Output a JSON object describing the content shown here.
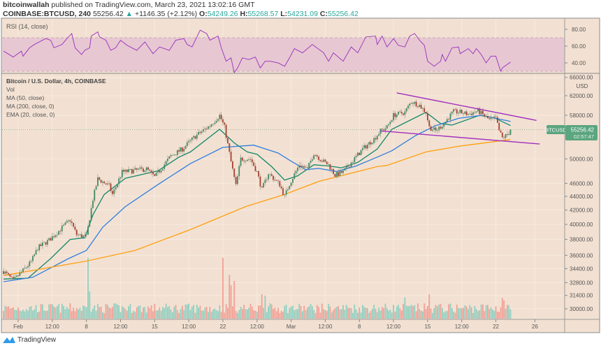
{
  "header": {
    "author": "bitcoinwallah",
    "published": " published on TradingView.com, March 23, 2021 13:02:16 GMT",
    "symbol": "COINBASE:BTCUSD, 240",
    "last": "55256.42",
    "change": "+1146.35 (+2.12%)",
    "o_label": "O:",
    "o": "54249.26",
    "h_label": "H:",
    "h": "55268.57",
    "l_label": "L:",
    "l": "54231.09",
    "c_label": "C:",
    "c": "55256.42"
  },
  "legend": {
    "title": "Bitcoin / U.S. Dollar, 4h, COINBASE",
    "vol": "Vol",
    "ma50": "MA (50, close)",
    "ma200": "MA (200, close, 0)",
    "ema20": "EMA (20, close, 0)",
    "rsi": "RSI (14, close)"
  },
  "price_label": {
    "symbol": "BTCUSD",
    "price": "55256.42",
    "countdown": "02:57:47"
  },
  "footer": {
    "brand": "TradingView"
  },
  "colors": {
    "background": "#f2e1d2",
    "up": "#3f8a63",
    "down": "#a8402f",
    "vol_up": "#8fcfc1",
    "vol_down": "#f2a096",
    "ema20": "#12876b",
    "ma50": "#2f7ee0",
    "ma200": "#ff9f10",
    "rsi": "#a03cc0",
    "rsi_band": "#e7c8d2",
    "trendline": "#a12fc0",
    "price_tag": "#5ba57f"
  },
  "chart_data": {
    "type": "candlestick",
    "title": "Bitcoin / U.S. Dollar, 4h, COINBASE",
    "y_scale": "log",
    "ylabel": "USD",
    "ylim": [
      28800,
      67000
    ],
    "grid": true,
    "y_ticks": [
      "66000.00",
      "62000.00",
      "58000.00",
      "50000.00",
      "46000.00",
      "44000.00",
      "42000.00",
      "40000.00",
      "38000.00",
      "36000.00",
      "34400.00",
      "32800.00",
      "31400.00",
      "30000.00"
    ],
    "x_ticks": [
      [
        "2021-02-01T00:00",
        "Feb"
      ],
      [
        "2021-02-04T12:00",
        "12:00"
      ],
      [
        "2021-02-08T00:00",
        "8"
      ],
      [
        "2021-02-11T12:00",
        "12:00"
      ],
      [
        "2021-02-15T00:00",
        "15"
      ],
      [
        "2021-02-18T12:00",
        "12:00"
      ],
      [
        "2021-02-22T00:00",
        "22"
      ],
      [
        "2021-02-25T12:00",
        "12:00"
      ],
      [
        "2021-03-01T00:00",
        "Mar"
      ],
      [
        "2021-03-04T12:00",
        "12:00"
      ],
      [
        "2021-03-08T00:00",
        "8"
      ],
      [
        "2021-03-11T12:00",
        "12:00"
      ],
      [
        "2021-03-15T00:00",
        "15"
      ],
      [
        "2021-03-18T12:00",
        "12:00"
      ],
      [
        "2021-03-22T00:00",
        "22"
      ],
      [
        "2021-03-26T00:00",
        "26"
      ]
    ],
    "close_approx": [
      [
        "2021-01-30T12:00",
        34100
      ],
      [
        "2021-01-31T12:00",
        33000
      ],
      [
        "2021-02-02T08:00",
        35200
      ],
      [
        "2021-02-03T00:00",
        36900
      ],
      [
        "2021-02-04T04:00",
        37900
      ],
      [
        "2021-02-06T08:00",
        40600
      ],
      [
        "2021-02-07T00:00",
        38600
      ],
      [
        "2021-02-08T00:00",
        38300
      ],
      [
        "2021-02-08T16:00",
        43600
      ],
      [
        "2021-02-09T04:00",
        46700
      ],
      [
        "2021-02-10T08:00",
        45600
      ],
      [
        "2021-02-10T16:00",
        44300
      ],
      [
        "2021-02-11T16:00",
        47800
      ],
      [
        "2021-02-14T04:00",
        48300
      ],
      [
        "2021-02-15T00:00",
        47000
      ],
      [
        "2021-02-16T16:00",
        50500
      ],
      [
        "2021-02-17T20:00",
        51700
      ],
      [
        "2021-02-19T04:00",
        54000
      ],
      [
        "2021-02-20T16:00",
        56000
      ],
      [
        "2021-02-21T16:00",
        58000
      ],
      [
        "2021-02-22T04:00",
        55700
      ],
      [
        "2021-02-22T20:00",
        49500
      ],
      [
        "2021-02-23T08:00",
        45600
      ],
      [
        "2021-02-23T20:00",
        50000
      ],
      [
        "2021-02-24T20:00",
        50000
      ],
      [
        "2021-02-25T12:00",
        47800
      ],
      [
        "2021-02-26T00:00",
        45000
      ],
      [
        "2021-02-26T16:00",
        47600
      ],
      [
        "2021-02-27T20:00",
        45800
      ],
      [
        "2021-02-28T08:00",
        44000
      ],
      [
        "2021-02-28T20:00",
        45900
      ],
      [
        "2021-03-01T20:00",
        49000
      ],
      [
        "2021-03-02T16:00",
        48300
      ],
      [
        "2021-03-03T08:00",
        51000
      ],
      [
        "2021-03-04T04:00",
        49700
      ],
      [
        "2021-03-04T20:00",
        49000
      ],
      [
        "2021-03-05T12:00",
        47300
      ],
      [
        "2021-03-06T08:00",
        47800
      ],
      [
        "2021-03-07T08:00",
        49700
      ],
      [
        "2021-03-08T08:00",
        51700
      ],
      [
        "2021-03-09T12:00",
        53500
      ],
      [
        "2021-03-10T04:00",
        55000
      ],
      [
        "2021-03-10T20:00",
        55700
      ],
      [
        "2021-03-11T12:00",
        58000
      ],
      [
        "2021-03-12T16:00",
        58600
      ],
      [
        "2021-03-13T08:00",
        60800
      ],
      [
        "2021-03-14T04:00",
        60000
      ],
      [
        "2021-03-14T20:00",
        58600
      ],
      [
        "2021-03-15T04:00",
        55700
      ],
      [
        "2021-03-15T20:00",
        55000
      ],
      [
        "2021-03-16T16:00",
        56400
      ],
      [
        "2021-03-17T08:00",
        58000
      ],
      [
        "2021-03-17T16:00",
        58700
      ],
      [
        "2021-03-18T08:00",
        58600
      ],
      [
        "2021-03-19T04:00",
        58200
      ],
      [
        "2021-03-20T04:00",
        58900
      ],
      [
        "2021-03-21T08:00",
        57100
      ],
      [
        "2021-03-22T00:00",
        57400
      ],
      [
        "2021-03-22T08:00",
        55000
      ],
      [
        "2021-03-22T16:00",
        53700
      ],
      [
        "2021-03-23T04:00",
        54249.26
      ],
      [
        "2021-03-23T12:00",
        55256.42
      ]
    ],
    "last_candle": {
      "open": 54249.26,
      "high": 55268.57,
      "low": 54231.09,
      "close": 55256.42
    },
    "series": [
      {
        "name": "EMA (20, close, 0)",
        "color": "#12876b",
        "points": [
          [
            "2021-01-30T12:00",
            33200
          ],
          [
            "2021-02-02T00:00",
            33300
          ],
          [
            "2021-02-04T08:00",
            35600
          ],
          [
            "2021-02-06T08:00",
            38000
          ],
          [
            "2021-02-07T20:00",
            38200
          ],
          [
            "2021-02-08T16:00",
            41300
          ],
          [
            "2021-02-09T20:00",
            44300
          ],
          [
            "2021-02-12T00:00",
            46800
          ],
          [
            "2021-02-15T08:00",
            48000
          ],
          [
            "2021-02-17T12:00",
            50300
          ],
          [
            "2021-02-18T16:00",
            51200
          ],
          [
            "2021-02-21T16:00",
            55300
          ],
          [
            "2021-02-23T04:00",
            52800
          ],
          [
            "2021-02-24T12:00",
            51200
          ],
          [
            "2021-02-25T12:00",
            50800
          ],
          [
            "2021-02-27T00:00",
            48700
          ],
          [
            "2021-02-28T08:00",
            46500
          ],
          [
            "2021-03-01T16:00",
            47200
          ],
          [
            "2021-03-03T08:00",
            49000
          ],
          [
            "2021-03-04T20:00",
            48800
          ],
          [
            "2021-03-06T04:00",
            48500
          ],
          [
            "2021-03-07T20:00",
            49400
          ],
          [
            "2021-03-09T20:00",
            51700
          ],
          [
            "2021-03-11T08:00",
            55300
          ],
          [
            "2021-03-14T20:00",
            58600
          ],
          [
            "2021-03-16T08:00",
            56400
          ],
          [
            "2021-03-17T12:00",
            56100
          ],
          [
            "2021-03-20T08:00",
            58000
          ],
          [
            "2021-03-21T20:00",
            57500
          ],
          [
            "2021-03-23T12:00",
            56000
          ]
        ]
      },
      {
        "name": "MA (50, close)",
        "color": "#2f7ee0",
        "points": [
          [
            "2021-01-30T12:00",
            32900
          ],
          [
            "2021-02-02T12:00",
            33400
          ],
          [
            "2021-02-06T04:00",
            35600
          ],
          [
            "2021-02-08T00:00",
            36600
          ],
          [
            "2021-02-09T16:00",
            39600
          ],
          [
            "2021-02-12T00:00",
            42500
          ],
          [
            "2021-02-15T08:00",
            45800
          ],
          [
            "2021-02-18T16:00",
            49200
          ],
          [
            "2021-02-22T00:00",
            52000
          ],
          [
            "2021-02-25T04:00",
            52400
          ],
          [
            "2021-02-27T16:00",
            51000
          ],
          [
            "2021-03-01T00:00",
            49600
          ],
          [
            "2021-03-02T12:00",
            48200
          ],
          [
            "2021-03-03T20:00",
            48400
          ],
          [
            "2021-03-05T16:00",
            47900
          ],
          [
            "2021-03-07T16:00",
            48800
          ],
          [
            "2021-03-09T20:00",
            50300
          ],
          [
            "2021-03-11T08:00",
            51400
          ],
          [
            "2021-03-13T20:00",
            54200
          ],
          [
            "2021-03-15T20:00",
            56000
          ],
          [
            "2021-03-18T04:00",
            57400
          ],
          [
            "2021-03-20T12:00",
            58000
          ],
          [
            "2021-03-23T12:00",
            56800
          ]
        ]
      },
      {
        "name": "MA (200, close, 0)",
        "color": "#ff9f10",
        "points": [
          [
            "2021-01-30T12:00",
            33600
          ],
          [
            "2021-02-08T00:00",
            35300
          ],
          [
            "2021-02-13T00:00",
            36600
          ],
          [
            "2021-02-18T16:00",
            39300
          ],
          [
            "2021-02-24T08:00",
            42500
          ],
          [
            "2021-02-28T08:00",
            44300
          ],
          [
            "2021-03-03T20:00",
            46300
          ],
          [
            "2021-03-09T20:00",
            48700
          ],
          [
            "2021-03-10T20:00",
            48900
          ],
          [
            "2021-03-14T20:00",
            51200
          ],
          [
            "2021-03-18T04:00",
            52200
          ],
          [
            "2021-03-23T12:00",
            53400
          ]
        ]
      }
    ],
    "trendlines": [
      {
        "from": [
          "2021-03-11T20:00",
          62600
        ],
        "to": [
          "2021-03-26T04:00",
          57000
        ]
      },
      {
        "from": [
          "2021-03-10T04:00",
          55000
        ],
        "to": [
          "2021-03-26T12:00",
          52600
        ]
      }
    ],
    "volume_spikes_relative": [
      [
        "2021-02-08T04:00",
        100
      ],
      [
        "2021-02-08T08:00",
        45
      ],
      [
        "2021-02-22T00:00",
        100
      ],
      [
        "2021-02-22T16:00",
        72
      ],
      [
        "2021-02-22T20:00",
        55
      ],
      [
        "2021-02-23T04:00",
        62
      ],
      [
        "2021-02-26T00:00",
        40
      ],
      [
        "2021-02-26T08:00",
        38
      ],
      [
        "2021-03-12T16:00",
        35
      ],
      [
        "2021-03-15T04:00",
        40
      ],
      [
        "2021-03-22T16:00",
        34
      ],
      [
        "2021-03-22T20:00",
        30
      ]
    ],
    "rsi": {
      "label": "RSI (14, close)",
      "ylim": [
        25,
        90
      ],
      "bands": [
        30,
        70
      ],
      "y_ticks": [
        "80.00",
        "60.00",
        "40.00"
      ],
      "points": [
        [
          "2021-01-30T12:00",
          54
        ],
        [
          "2021-01-31T12:00",
          47
        ],
        [
          "2021-02-01T08:00",
          54
        ],
        [
          "2021-02-01T12:00",
          48
        ],
        [
          "2021-02-02T04:00",
          58
        ],
        [
          "2021-02-02T16:00",
          62
        ],
        [
          "2021-02-03T20:00",
          69
        ],
        [
          "2021-02-04T08:00",
          67
        ],
        [
          "2021-02-04T16:00",
          58
        ],
        [
          "2021-02-05T12:00",
          62
        ],
        [
          "2021-02-06T00:00",
          69
        ],
        [
          "2021-02-06T12:00",
          75
        ],
        [
          "2021-02-06T20:00",
          58
        ],
        [
          "2021-02-07T12:00",
          50
        ],
        [
          "2021-02-07T20:00",
          55
        ],
        [
          "2021-02-08T08:00",
          58
        ],
        [
          "2021-02-08T12:00",
          72
        ],
        [
          "2021-02-09T04:00",
          77
        ],
        [
          "2021-02-09T08:00",
          71
        ],
        [
          "2021-02-10T00:00",
          67
        ],
        [
          "2021-02-10T12:00",
          55
        ],
        [
          "2021-02-11T00:00",
          58
        ],
        [
          "2021-02-11T12:00",
          67
        ],
        [
          "2021-02-12T04:00",
          61
        ],
        [
          "2021-02-13T04:00",
          55
        ],
        [
          "2021-02-14T00:00",
          65
        ],
        [
          "2021-02-14T20:00",
          51
        ],
        [
          "2021-02-15T12:00",
          59
        ],
        [
          "2021-02-16T12:00",
          55
        ],
        [
          "2021-02-17T04:00",
          67
        ],
        [
          "2021-02-18T00:00",
          69
        ],
        [
          "2021-02-18T08:00",
          62
        ],
        [
          "2021-02-18T20:00",
          59
        ],
        [
          "2021-02-19T16:00",
          79
        ],
        [
          "2021-02-20T08:00",
          75
        ],
        [
          "2021-02-20T16:00",
          67
        ],
        [
          "2021-02-21T12:00",
          72
        ],
        [
          "2021-02-21T20:00",
          58
        ],
        [
          "2021-02-22T08:00",
          42
        ],
        [
          "2021-02-22T20:00",
          46
        ],
        [
          "2021-02-23T04:00",
          19
        ],
        [
          "2021-02-23T12:00",
          34
        ],
        [
          "2021-02-24T00:00",
          46
        ],
        [
          "2021-02-24T16:00",
          44
        ],
        [
          "2021-02-25T08:00",
          47
        ],
        [
          "2021-02-25T20:00",
          34
        ],
        [
          "2021-02-26T08:00",
          42
        ],
        [
          "2021-02-26T20:00",
          42
        ],
        [
          "2021-02-27T16:00",
          40
        ],
        [
          "2021-02-28T08:00",
          36
        ],
        [
          "2021-02-28T20:00",
          46
        ],
        [
          "2021-03-01T08:00",
          57
        ],
        [
          "2021-03-02T04:00",
          52
        ],
        [
          "2021-03-03T04:00",
          62
        ],
        [
          "2021-03-04T08:00",
          52
        ],
        [
          "2021-03-04T20:00",
          42
        ],
        [
          "2021-03-05T08:00",
          52
        ],
        [
          "2021-03-06T08:00",
          42
        ],
        [
          "2021-03-07T04:00",
          59
        ],
        [
          "2021-03-07T20:00",
          52
        ],
        [
          "2021-03-08T16:00",
          71
        ],
        [
          "2021-03-09T16:00",
          72
        ],
        [
          "2021-03-09T20:00",
          62
        ],
        [
          "2021-03-10T08:00",
          72
        ],
        [
          "2021-03-10T20:00",
          59
        ],
        [
          "2021-03-11T12:00",
          69
        ],
        [
          "2021-03-12T00:00",
          61
        ],
        [
          "2021-03-12T16:00",
          59
        ],
        [
          "2021-03-13T04:00",
          72
        ],
        [
          "2021-03-13T16:00",
          75
        ],
        [
          "2021-03-14T04:00",
          67
        ],
        [
          "2021-03-14T16:00",
          61
        ],
        [
          "2021-03-15T00:00",
          42
        ],
        [
          "2021-03-15T16:00",
          36
        ],
        [
          "2021-03-16T08:00",
          42
        ],
        [
          "2021-03-16T12:00",
          50
        ],
        [
          "2021-03-16T20:00",
          42
        ],
        [
          "2021-03-17T12:00",
          58
        ],
        [
          "2021-03-18T04:00",
          59
        ],
        [
          "2021-03-18T08:00",
          51
        ],
        [
          "2021-03-19T04:00",
          57
        ],
        [
          "2021-03-19T16:00",
          51
        ],
        [
          "2021-03-20T00:00",
          57
        ],
        [
          "2021-03-20T12:00",
          50
        ],
        [
          "2021-03-21T00:00",
          40
        ],
        [
          "2021-03-21T12:00",
          48
        ],
        [
          "2021-03-22T00:00",
          48
        ],
        [
          "2021-03-22T12:00",
          30
        ],
        [
          "2021-03-22T16:00",
          34
        ],
        [
          "2021-03-23T12:00",
          41
        ]
      ]
    }
  }
}
